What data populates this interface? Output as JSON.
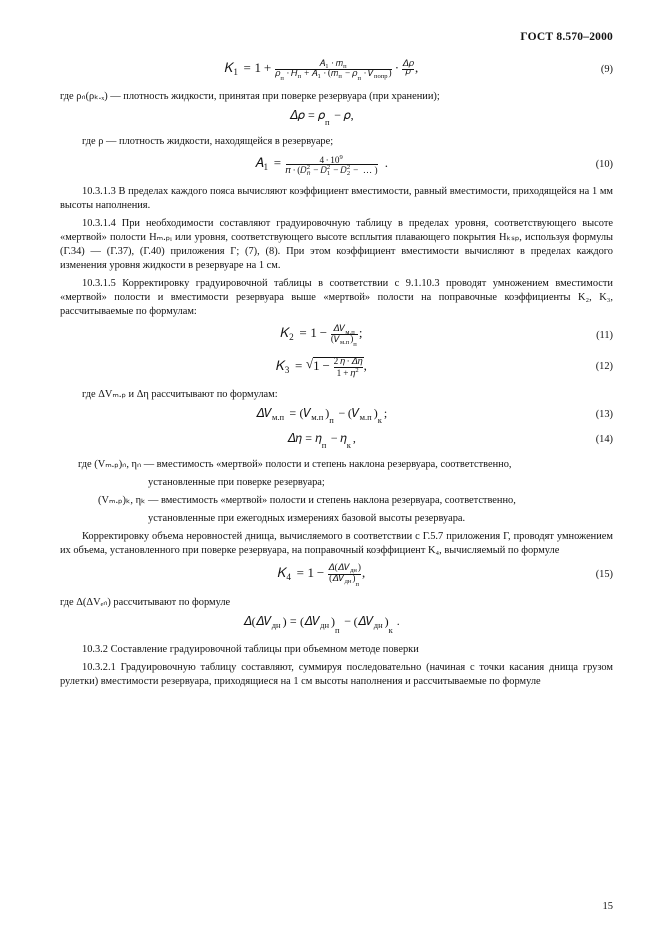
{
  "doc": {
    "header": "ГОСТ 8.570–2000",
    "pageNumber": "15"
  },
  "eq9": {
    "num": "(9)"
  },
  "p1": "где ρₙ(ρₖ.ₓ) —  плотность жидкости, принятая при поверке резервуара (при хранении);",
  "p2": "где ρ —  плотность жидкости, находящейся в резервуаре;",
  "eq10": {
    "num": "(10)"
  },
  "p3": "10.3.1.3  В пределах каждого пояса вычисляют коэффициент вместимости, равный вместимости, приходящейся на 1 мм высоты наполнения.",
  "p4": "10.3.1.4  При необходимости составляют градуировочную таблицу в пределах уровня, соответствующего высоте «мертвой» полости Hₘ.ₚᵢ или уровня, соответствующего высоте всплытия плавающего покрытия Hₖₛₚ, используя формулы (Г.34) — (Г.37), (Г.40) приложения Г; (7), (8). При этом коэффициент вместимости вычисляют в пределах каждого изменения уровня жидкости в резервуаре на 1 см.",
  "p5": "10.3.1.5  Корректировку градуировочной таблицы в соответствии с 9.1.10.3 проводят умножением вместимости «мертвой» полости и вместимости резервуара выше «мертвой» полости на поправочные коэффициенты K₂, K₃, рассчитываемые по формулам:",
  "eq11": {
    "num": "(11)"
  },
  "eq12": {
    "num": "(12)"
  },
  "p6": "где ΔVₘ.ₚ и Δη рассчитывают по формулам:",
  "eq13": {
    "num": "(13)"
  },
  "eq14": {
    "num": "(14)"
  },
  "p7a": "где (Vₘ.ₚ)ₙ, ηₙ — вместимость «мертвой» полости и степень наклона резервуара, соответственно,",
  "p7b": "установленные при поверке резервуара;",
  "p8a": "(Vₘ.ₚ)ₖ, ηₖ — вместимость «мертвой» полости и степень наклона резервуара, соответственно,",
  "p8b": "установленные при ежегодных измерениях базовой высоты резервуара.",
  "p9": "Корректировку объема неровностей днища, вычисляемого в соответствии с Г.5.7 приложения Г, проводят умножением их объема, установленного при поверке резервуара, на поправочный коэффициент K₄, вычисляемый по формуле",
  "eq15": {
    "num": "(15)"
  },
  "p10": "где Δ(ΔVₑₙ) рассчитывают по формуле",
  "p11": "10.3.2  Составление градуировочной таблицы при объемном методе поверки",
  "p12": "10.3.2.1  Градуировочную таблицу составляют, суммируя последовательно (начиная с точки касания днища грузом рулетки) вместимости резервуара, приходящиеся на 1 см высоты наполнения и рассчитываемые по формуле"
}
